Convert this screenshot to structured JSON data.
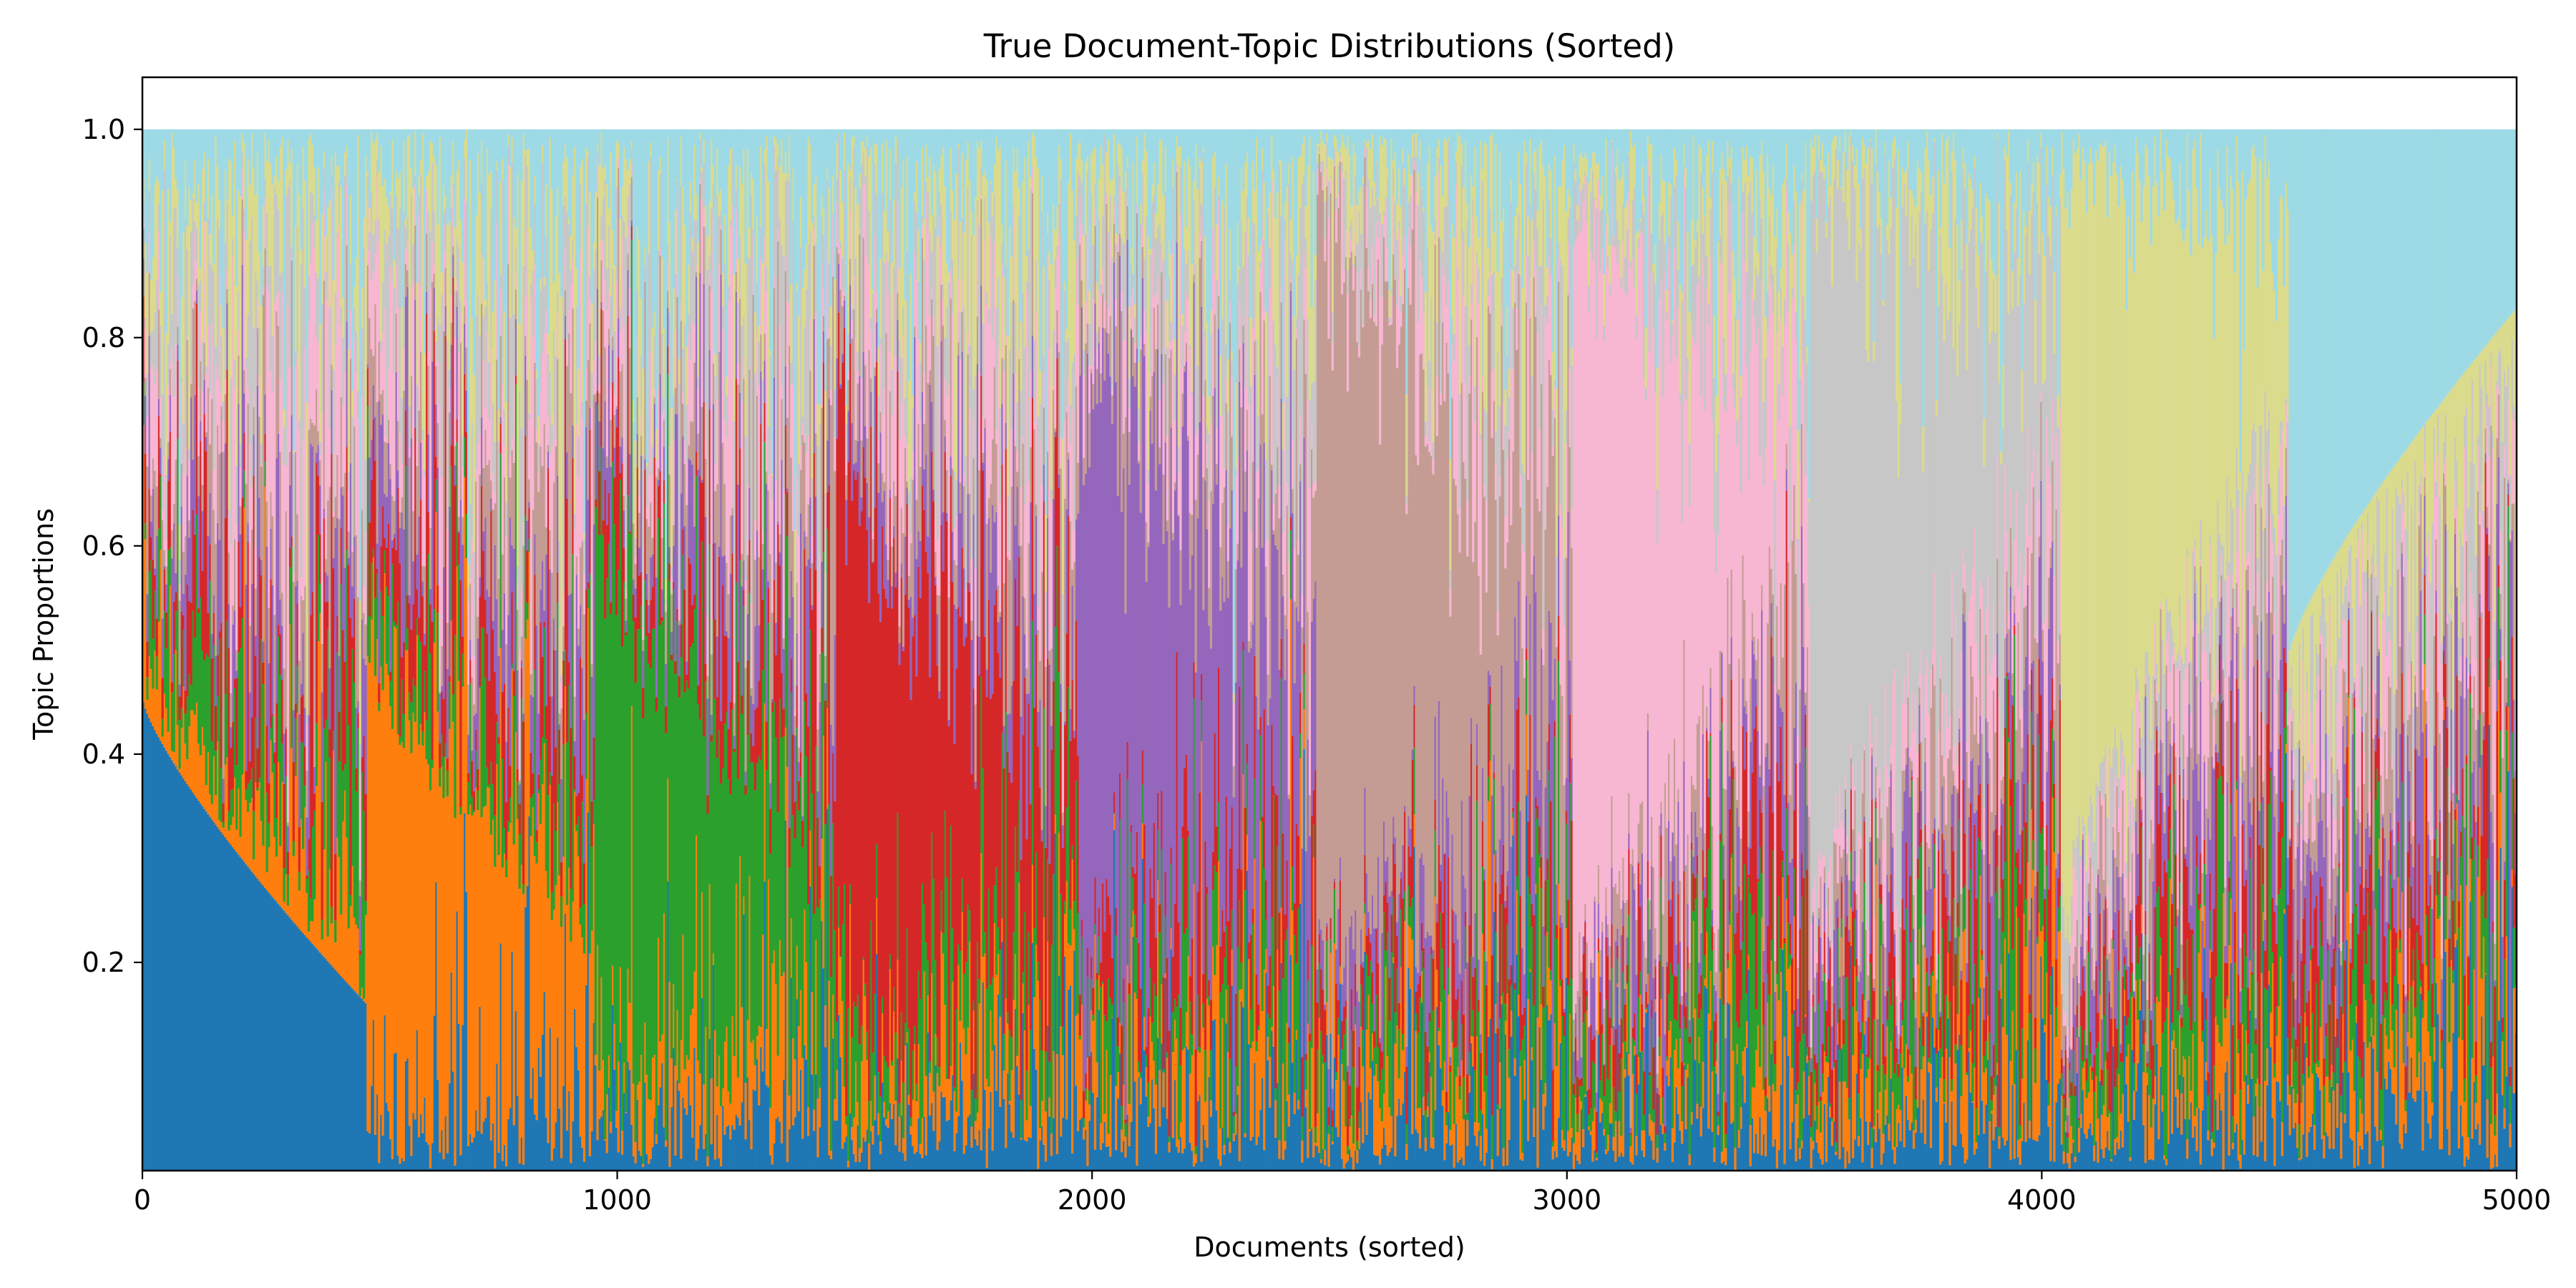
{
  "chart_data": {
    "type": "area",
    "stacked": true,
    "title": "True Document-Topic Distributions (Sorted)",
    "xlabel": "Documents (sorted)",
    "ylabel": "Topic Proportions",
    "xlim": [
      0,
      5000
    ],
    "ylim": [
      0.0,
      1.05
    ],
    "x_ticks": [
      0,
      1000,
      2000,
      3000,
      4000,
      5000
    ],
    "x_tick_labels": [
      "0",
      "1000",
      "2000",
      "3000",
      "4000",
      "5000"
    ],
    "y_ticks": [
      0.2,
      0.4,
      0.6,
      0.8,
      1.0
    ],
    "y_tick_labels": [
      "0.2",
      "0.4",
      "0.6",
      "0.8",
      "1.0"
    ],
    "grid": false,
    "legend": "none",
    "num_documents": 5000,
    "colors": [
      "#1f77b4",
      "#ff7f0e",
      "#2ca02c",
      "#d62728",
      "#9467bd",
      "#c49c94",
      "#f7b6d2",
      "#c7c7c7",
      "#dbdb8d",
      "#9edae5"
    ],
    "dominant_topic_blocks": [
      {
        "topic": 0,
        "start": 0,
        "end": 470,
        "dominant_proportion_start": 0.45,
        "dominant_proportion_end": 0.16
      },
      {
        "topic": 1,
        "start": 470,
        "end": 950,
        "dominant_proportion_start": 0.46,
        "dominant_proportion_end": 0.19
      },
      {
        "topic": 2,
        "start": 950,
        "end": 1460,
        "dominant_proportion_start": 0.53,
        "dominant_proportion_end": 0.16
      },
      {
        "topic": 3,
        "start": 1460,
        "end": 1970,
        "dominant_proportion_start": 0.56,
        "dominant_proportion_end": 0.15
      },
      {
        "topic": 4,
        "start": 1970,
        "end": 2470,
        "dominant_proportion_start": 0.6,
        "dominant_proportion_end": 0.18
      },
      {
        "topic": 5,
        "start": 2470,
        "end": 3010,
        "dominant_proportion_start": 0.75,
        "dominant_proportion_end": 0.2
      },
      {
        "topic": 6,
        "start": 3010,
        "end": 3510,
        "dominant_proportion_start": 0.75,
        "dominant_proportion_end": 0.2
      },
      {
        "topic": 7,
        "start": 3510,
        "end": 4040,
        "dominant_proportion_start": 0.7,
        "dominant_proportion_end": 0.2
      },
      {
        "topic": 8,
        "start": 4040,
        "end": 4520,
        "dominant_proportion_start": 0.72,
        "dominant_proportion_end": 0.2
      },
      {
        "topic": 9,
        "start": 4520,
        "end": 5000,
        "dominant_proportion_start": 0.5,
        "dominant_proportion_end": 0.17
      }
    ]
  }
}
